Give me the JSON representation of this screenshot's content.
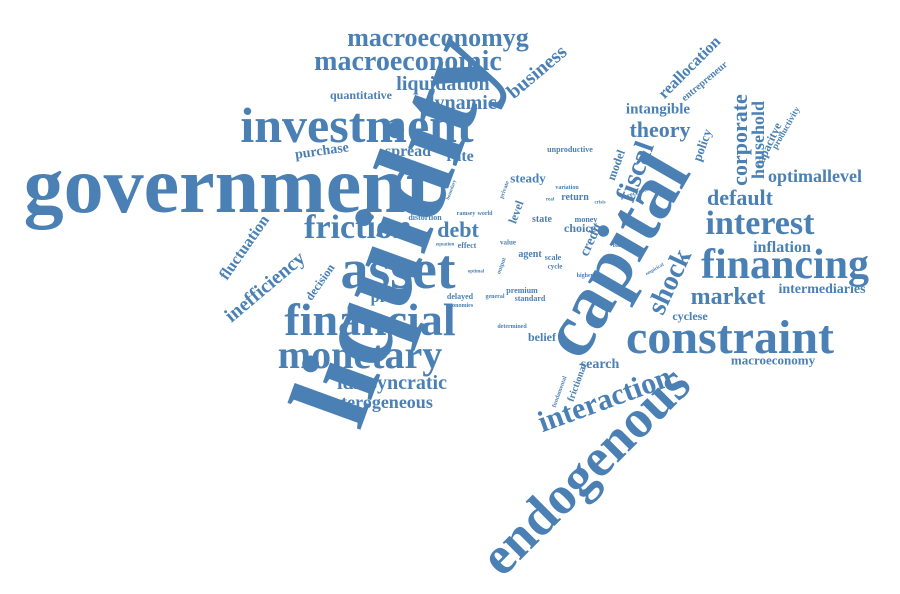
{
  "colors": {
    "text": "#4a80b4",
    "background": "#ffffff"
  },
  "words": [
    {
      "text": "liquidity"
    },
    {
      "text": "government"
    },
    {
      "text": "investment"
    },
    {
      "text": "asset"
    },
    {
      "text": "capital"
    },
    {
      "text": "financial"
    },
    {
      "text": "constraint"
    },
    {
      "text": "monetary"
    },
    {
      "text": "endogenous"
    },
    {
      "text": "financing"
    },
    {
      "text": "friction"
    },
    {
      "text": "interest"
    },
    {
      "text": "macroeconomyg"
    },
    {
      "text": "macroeconomic"
    },
    {
      "text": "interaction"
    },
    {
      "text": "shock"
    },
    {
      "text": "fiscal"
    },
    {
      "text": "market"
    },
    {
      "text": "theory"
    },
    {
      "text": "corporate"
    },
    {
      "text": "household"
    },
    {
      "text": "default"
    },
    {
      "text": "optimallevel"
    },
    {
      "text": "debt"
    },
    {
      "text": "liquidation"
    },
    {
      "text": "dynamic"
    },
    {
      "text": "business"
    },
    {
      "text": "idiosyncratic"
    },
    {
      "text": "heterogeneous"
    },
    {
      "text": "inefficiency"
    },
    {
      "text": "fluctuation"
    },
    {
      "text": "price"
    },
    {
      "text": "spread"
    },
    {
      "text": "rate"
    },
    {
      "text": "purchase"
    },
    {
      "text": "quantitative"
    },
    {
      "text": "reallocation"
    },
    {
      "text": "intangible"
    },
    {
      "text": "inflation"
    },
    {
      "text": "intermediaries"
    },
    {
      "text": "macroeconomy"
    },
    {
      "text": "search"
    },
    {
      "text": "cyclese"
    },
    {
      "text": "capacitye"
    },
    {
      "text": "entrepreneur"
    },
    {
      "text": "productivity"
    },
    {
      "text": "policy"
    },
    {
      "text": "model"
    },
    {
      "text": "credit"
    },
    {
      "text": "decision"
    },
    {
      "text": "steady"
    },
    {
      "text": "level"
    },
    {
      "text": "choice"
    },
    {
      "text": "belief"
    },
    {
      "text": "frictional"
    },
    {
      "text": "unproductive"
    },
    {
      "text": "return"
    },
    {
      "text": "distortion"
    },
    {
      "text": "agent"
    },
    {
      "text": "state"
    },
    {
      "text": "scale"
    },
    {
      "text": "effect"
    },
    {
      "text": "money"
    },
    {
      "text": "premium"
    },
    {
      "text": "standard"
    },
    {
      "text": "delayed"
    },
    {
      "text": "economies"
    },
    {
      "text": "value"
    },
    {
      "text": "world"
    },
    {
      "text": "ramsey"
    },
    {
      "text": "cycle"
    },
    {
      "text": "recession"
    },
    {
      "text": "based"
    },
    {
      "text": "variation"
    },
    {
      "text": "output"
    },
    {
      "text": "determined"
    },
    {
      "text": "general"
    },
    {
      "text": "fundamental"
    },
    {
      "text": "higher"
    },
    {
      "text": "private"
    },
    {
      "text": "equation"
    },
    {
      "text": "optimal"
    },
    {
      "text": "real"
    },
    {
      "text": "empirical"
    },
    {
      "text": "boundary"
    },
    {
      "text": "crisis"
    }
  ]
}
